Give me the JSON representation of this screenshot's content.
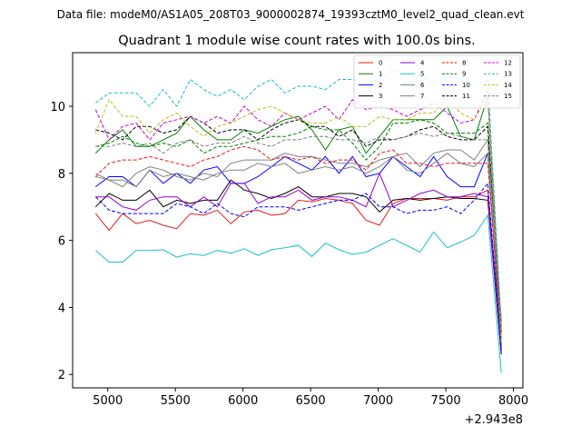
{
  "header": {
    "filename": "Data file: modeM0/AS1A05_208T03_9000002874_19393cztM0_level2_quad_clean.evt"
  },
  "chart_data": {
    "type": "line",
    "title": "Quadrant 1 module wise count rates with 100.0s bins.",
    "xlabel": "",
    "ylabel": "",
    "x_offset_label": "+2.943e8",
    "xlim": [
      4740,
      8070
    ],
    "ylim": [
      1.6,
      11.6
    ],
    "xticks": [
      5000,
      5500,
      6000,
      6500,
      7000,
      7500,
      8000
    ],
    "xtick_labels": [
      "5000",
      "5500",
      "6000",
      "6500",
      "7000",
      "7500",
      "8000"
    ],
    "yticks": [
      2,
      4,
      6,
      8,
      10
    ],
    "ytick_labels": [
      "2",
      "4",
      "6",
      "8",
      "10"
    ],
    "legend_position": "top-right",
    "x": [
      4910,
      5010,
      5110,
      5210,
      5310,
      5410,
      5510,
      5610,
      5710,
      5810,
      5910,
      6010,
      6110,
      6210,
      6310,
      6410,
      6510,
      6610,
      6710,
      6810,
      6910,
      7010,
      7110,
      7210,
      7310,
      7410,
      7510,
      7610,
      7710,
      7810,
      7910
    ],
    "series": [
      {
        "name": "0",
        "color": "#e41a1c",
        "dash": "solid",
        "values": [
          6.8,
          6.3,
          6.8,
          6.5,
          6.6,
          6.45,
          6.35,
          6.8,
          6.75,
          6.9,
          6.5,
          6.85,
          6.9,
          6.75,
          6.8,
          7.2,
          7.15,
          7.25,
          7.2,
          7.1,
          6.6,
          6.45,
          7.1,
          7.25,
          7.25,
          7.25,
          7.2,
          7.3,
          7.3,
          7.5,
          2.9
        ]
      },
      {
        "name": "1",
        "color": "#008000",
        "dash": "solid",
        "values": [
          8.6,
          9.0,
          9.3,
          8.8,
          8.8,
          9.0,
          9.2,
          9.7,
          9.3,
          9.0,
          9.0,
          9.3,
          9.2,
          9.4,
          9.6,
          9.7,
          9.3,
          8.7,
          9.3,
          9.4,
          8.6,
          9.1,
          9.6,
          9.6,
          9.6,
          9.6,
          10.0,
          9.1,
          9.0,
          10.3,
          3.3
        ]
      },
      {
        "name": "2",
        "color": "#0000ff",
        "dash": "solid",
        "values": [
          7.6,
          7.9,
          7.9,
          7.6,
          8.1,
          7.7,
          8.0,
          7.7,
          8.1,
          8.2,
          7.7,
          7.7,
          7.9,
          8.2,
          8.5,
          8.3,
          8.1,
          8.5,
          8.0,
          8.5,
          7.9,
          8.0,
          8.5,
          8.2,
          7.9,
          8.5,
          7.9,
          7.6,
          7.6,
          8.6,
          2.8
        ]
      },
      {
        "name": "3",
        "color": "#000000",
        "dash": "solid",
        "values": [
          7.0,
          7.4,
          7.2,
          7.2,
          7.5,
          7.0,
          7.2,
          7.1,
          7.2,
          7.2,
          7.8,
          7.5,
          7.4,
          7.25,
          7.4,
          7.6,
          7.3,
          7.3,
          7.4,
          7.4,
          7.3,
          6.85,
          7.2,
          7.25,
          7.2,
          7.25,
          7.3,
          7.25,
          7.25,
          7.2,
          2.6
        ]
      },
      {
        "name": "4",
        "color": "#9400d3",
        "dash": "solid",
        "values": [
          7.3,
          7.3,
          7.0,
          6.9,
          7.2,
          7.3,
          7.3,
          7.0,
          7.3,
          7.0,
          7.7,
          7.7,
          7.1,
          7.3,
          7.3,
          7.5,
          7.2,
          7.3,
          7.3,
          7.2,
          7.0,
          8.0,
          7.0,
          7.2,
          7.4,
          7.5,
          7.3,
          7.3,
          7.4,
          7.3,
          2.7
        ]
      },
      {
        "name": "5",
        "color": "#17becf",
        "dash": "solid",
        "values": [
          5.7,
          5.35,
          5.35,
          5.7,
          5.7,
          5.72,
          5.5,
          5.6,
          5.55,
          5.7,
          5.62,
          5.75,
          5.55,
          5.72,
          5.78,
          5.85,
          5.52,
          5.92,
          5.72,
          5.58,
          5.65,
          5.85,
          6.05,
          5.85,
          5.65,
          6.25,
          5.78,
          5.95,
          6.15,
          6.75,
          2.05
        ]
      },
      {
        "name": "6",
        "color": "#808080",
        "dash": "solid",
        "values": [
          8.0,
          7.8,
          7.8,
          7.6,
          8.1,
          7.9,
          8.0,
          7.9,
          7.8,
          8.0,
          8.1,
          8.1,
          8.3,
          8.2,
          8.3,
          8.0,
          8.1,
          8.2,
          8.1,
          8.2,
          8.0,
          8.2,
          8.5,
          8.1,
          8.0,
          8.3,
          8.6,
          8.3,
          8.2,
          8.6,
          2.9
        ]
      },
      {
        "name": "7",
        "color": "#808080",
        "dash": "solid",
        "values": [
          7.9,
          7.8,
          7.6,
          8.0,
          8.2,
          8.1,
          7.9,
          7.8,
          8.0,
          7.9,
          8.3,
          8.4,
          8.4,
          8.4,
          8.6,
          8.5,
          8.5,
          8.4,
          8.3,
          8.3,
          8.2,
          8.4,
          8.5,
          8.6,
          8.2,
          8.6,
          8.7,
          8.7,
          8.4,
          9.0,
          3.6
        ]
      },
      {
        "name": "8",
        "color": "#e41a1c",
        "dash": "dashed",
        "values": [
          7.9,
          8.3,
          8.4,
          8.4,
          8.5,
          8.4,
          8.3,
          8.2,
          8.4,
          8.5,
          8.7,
          8.8,
          8.7,
          8.4,
          8.5,
          8.4,
          8.5,
          8.3,
          8.4,
          8.4,
          8.1,
          8.6,
          8.7,
          8.3,
          8.3,
          8.2,
          8.3,
          8.3,
          8.3,
          8.3,
          3.2
        ]
      },
      {
        "name": "9",
        "color": "#008000",
        "dash": "dashed",
        "values": [
          8.8,
          8.9,
          9.1,
          8.9,
          8.8,
          8.9,
          8.8,
          9.0,
          8.6,
          8.8,
          8.8,
          8.9,
          9.0,
          9.1,
          9.1,
          9.2,
          9.4,
          9.3,
          9.3,
          8.9,
          8.4,
          8.8,
          9.5,
          9.5,
          9.6,
          9.5,
          9.2,
          9.2,
          9.2,
          9.5,
          3.4
        ]
      },
      {
        "name": "10",
        "color": "#0000ff",
        "dash": "dashed",
        "values": [
          7.3,
          6.9,
          6.8,
          6.8,
          6.8,
          6.8,
          7.1,
          7.0,
          6.8,
          7.1,
          6.8,
          6.7,
          7.0,
          7.0,
          7.0,
          6.9,
          7.0,
          7.1,
          7.2,
          7.2,
          7.4,
          7.0,
          7.0,
          6.8,
          6.9,
          6.9,
          7.0,
          6.8,
          7.2,
          7.7,
          2.7
        ]
      },
      {
        "name": "11",
        "color": "#000000",
        "dash": "dashed",
        "values": [
          9.3,
          9.2,
          9.0,
          9.4,
          9.4,
          9.2,
          9.3,
          9.7,
          9.5,
          9.2,
          9.3,
          9.3,
          9.0,
          9.3,
          9.5,
          9.6,
          9.4,
          9.4,
          9.1,
          9.3,
          8.8,
          9.0,
          9.0,
          9.1,
          9.3,
          9.4,
          9.1,
          9.0,
          9.0,
          9.4,
          3.1
        ]
      },
      {
        "name": "12",
        "color": "#cc00cc",
        "dash": "dashed",
        "values": [
          9.9,
          9.0,
          9.4,
          9.5,
          9.0,
          9.5,
          9.6,
          9.7,
          9.5,
          9.7,
          9.5,
          10.0,
          9.6,
          9.4,
          9.8,
          9.6,
          9.8,
          10.0,
          9.6,
          10.2,
          9.9,
          10.0,
          9.9,
          9.7,
          9.9,
          10.1,
          9.8,
          9.5,
          9.6,
          10.5,
          3.3
        ]
      },
      {
        "name": "13",
        "color": "#17becf",
        "dash": "dashed",
        "values": [
          10.1,
          10.4,
          10.4,
          10.4,
          10.0,
          10.5,
          10.0,
          10.8,
          10.5,
          10.3,
          10.5,
          10.2,
          10.6,
          10.8,
          10.4,
          10.6,
          10.6,
          10.5,
          10.8,
          10.8,
          10.7,
          10.8,
          11.1,
          10.6,
          10.9,
          10.7,
          10.9,
          10.8,
          10.6,
          10.8,
          3.5
        ]
      },
      {
        "name": "14",
        "color": "#bcbd22",
        "dash": "dashed",
        "values": [
          9.2,
          10.2,
          9.7,
          9.7,
          9.2,
          9.6,
          9.8,
          9.4,
          9.1,
          9.4,
          9.5,
          9.7,
          9.9,
          10.0,
          9.8,
          9.6,
          9.5,
          9.5,
          9.7,
          9.4,
          9.4,
          9.7,
          9.6,
          9.6,
          9.8,
          9.8,
          10.2,
          9.8,
          9.6,
          10.3,
          3.0
        ]
      },
      {
        "name": "15",
        "color": "#808080",
        "dash": "dashed",
        "values": [
          8.8,
          8.8,
          8.9,
          8.8,
          8.9,
          8.6,
          8.9,
          9.0,
          8.8,
          8.9,
          8.9,
          9.1,
          8.9,
          8.8,
          9.0,
          9.0,
          9.1,
          9.1,
          9.0,
          9.0,
          8.9,
          9.1,
          9.0,
          9.1,
          9.2,
          9.1,
          9.2,
          9.1,
          9.0,
          9.0,
          3.5
        ]
      }
    ]
  }
}
